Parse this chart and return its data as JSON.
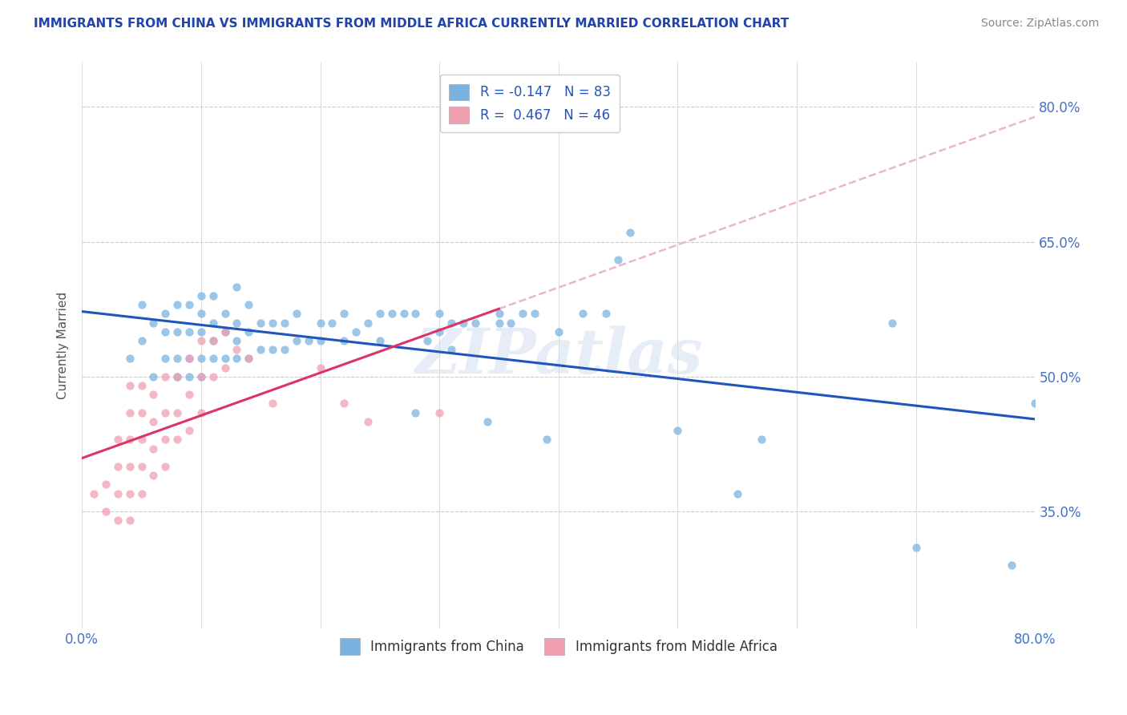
{
  "title": "IMMIGRANTS FROM CHINA VS IMMIGRANTS FROM MIDDLE AFRICA CURRENTLY MARRIED CORRELATION CHART",
  "source": "Source: ZipAtlas.com",
  "ylabel": "Currently Married",
  "xlim": [
    0.0,
    0.8
  ],
  "ylim": [
    0.22,
    0.85
  ],
  "x_ticks": [
    0.0,
    0.1,
    0.2,
    0.3,
    0.4,
    0.5,
    0.6,
    0.7,
    0.8
  ],
  "x_tick_labels": [
    "0.0%",
    "",
    "",
    "",
    "",
    "",
    "",
    "",
    "80.0%"
  ],
  "y_ticks": [
    0.35,
    0.5,
    0.65,
    0.8
  ],
  "china_color": "#7ab3e0",
  "china_color_line": "#2255bb",
  "middle_africa_color": "#f0a0b0",
  "middle_africa_color_line": "#dd3366",
  "trend_dashed_color": "#e8b8c8",
  "R_china": -0.147,
  "N_china": 83,
  "R_africa": 0.467,
  "N_africa": 46,
  "legend_label_china": "R = -0.147   N = 83",
  "legend_label_africa": "R =  0.467   N = 46",
  "legend_label_china_bottom": "Immigrants from China",
  "legend_label_africa_bottom": "Immigrants from Middle Africa",
  "watermark": "ZIPatlas",
  "china_x": [
    0.04,
    0.05,
    0.05,
    0.06,
    0.06,
    0.07,
    0.07,
    0.07,
    0.08,
    0.08,
    0.08,
    0.08,
    0.09,
    0.09,
    0.09,
    0.09,
    0.1,
    0.1,
    0.1,
    0.1,
    0.1,
    0.11,
    0.11,
    0.11,
    0.11,
    0.12,
    0.12,
    0.12,
    0.13,
    0.13,
    0.13,
    0.13,
    0.14,
    0.14,
    0.14,
    0.15,
    0.15,
    0.16,
    0.16,
    0.17,
    0.17,
    0.18,
    0.18,
    0.19,
    0.2,
    0.2,
    0.21,
    0.22,
    0.22,
    0.23,
    0.24,
    0.25,
    0.25,
    0.26,
    0.27,
    0.28,
    0.28,
    0.29,
    0.3,
    0.3,
    0.31,
    0.31,
    0.32,
    0.33,
    0.34,
    0.35,
    0.35,
    0.36,
    0.37,
    0.38,
    0.39,
    0.4,
    0.42,
    0.44,
    0.45,
    0.46,
    0.5,
    0.55,
    0.57,
    0.68,
    0.7,
    0.78,
    0.8
  ],
  "china_y": [
    0.52,
    0.54,
    0.58,
    0.5,
    0.56,
    0.52,
    0.55,
    0.57,
    0.5,
    0.52,
    0.55,
    0.58,
    0.5,
    0.52,
    0.55,
    0.58,
    0.5,
    0.52,
    0.55,
    0.57,
    0.59,
    0.52,
    0.54,
    0.56,
    0.59,
    0.52,
    0.55,
    0.57,
    0.52,
    0.54,
    0.56,
    0.6,
    0.52,
    0.55,
    0.58,
    0.53,
    0.56,
    0.53,
    0.56,
    0.53,
    0.56,
    0.54,
    0.57,
    0.54,
    0.54,
    0.56,
    0.56,
    0.54,
    0.57,
    0.55,
    0.56,
    0.54,
    0.57,
    0.57,
    0.57,
    0.46,
    0.57,
    0.54,
    0.55,
    0.57,
    0.53,
    0.56,
    0.56,
    0.56,
    0.45,
    0.56,
    0.57,
    0.56,
    0.57,
    0.57,
    0.43,
    0.55,
    0.57,
    0.57,
    0.63,
    0.66,
    0.44,
    0.37,
    0.43,
    0.56,
    0.31,
    0.29,
    0.47
  ],
  "africa_x": [
    0.01,
    0.02,
    0.02,
    0.03,
    0.03,
    0.03,
    0.03,
    0.04,
    0.04,
    0.04,
    0.04,
    0.04,
    0.04,
    0.05,
    0.05,
    0.05,
    0.05,
    0.05,
    0.06,
    0.06,
    0.06,
    0.06,
    0.07,
    0.07,
    0.07,
    0.07,
    0.08,
    0.08,
    0.08,
    0.09,
    0.09,
    0.09,
    0.1,
    0.1,
    0.1,
    0.11,
    0.11,
    0.12,
    0.12,
    0.13,
    0.14,
    0.16,
    0.2,
    0.22,
    0.24,
    0.3
  ],
  "africa_y": [
    0.37,
    0.35,
    0.38,
    0.34,
    0.37,
    0.4,
    0.43,
    0.34,
    0.37,
    0.4,
    0.43,
    0.46,
    0.49,
    0.37,
    0.4,
    0.43,
    0.46,
    0.49,
    0.39,
    0.42,
    0.45,
    0.48,
    0.4,
    0.43,
    0.46,
    0.5,
    0.43,
    0.46,
    0.5,
    0.44,
    0.48,
    0.52,
    0.46,
    0.5,
    0.54,
    0.5,
    0.54,
    0.51,
    0.55,
    0.53,
    0.52,
    0.47,
    0.51,
    0.47,
    0.45,
    0.46
  ]
}
